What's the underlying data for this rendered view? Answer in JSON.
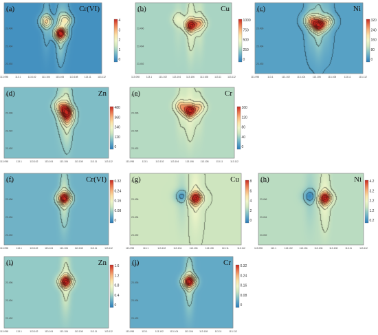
{
  "chart_data": [
    {
      "type": "heatmap",
      "panel": "(a)",
      "element": "Cr(VI)",
      "colorbar_ticks": [
        "4",
        "3",
        "2",
        "1",
        "0"
      ],
      "clim": [
        0,
        4.4
      ],
      "x_ticks": [
        "113.098",
        "113.1",
        "113.102",
        "113.104",
        "113.106",
        "113.108",
        "113.11",
        "113.112"
      ],
      "y_ticks": [
        "23.492",
        "23.494",
        "23.496",
        "23.498"
      ],
      "hotspots": [
        {
          "x": 113.106,
          "y": 23.496,
          "peak": 4.4
        },
        {
          "x": 113.104,
          "y": 23.4972,
          "peak": 2.4
        },
        {
          "x": 113.1068,
          "y": 23.4973,
          "peak": 2.0
        }
      ],
      "background_level": 0.3
    },
    {
      "type": "heatmap",
      "panel": "(b)",
      "element": "Cu",
      "colorbar_ticks": [
        "1000",
        "750",
        "500",
        "250",
        "0"
      ],
      "clim": [
        0,
        1100
      ],
      "x_ticks": [
        "113.098",
        "113.1",
        "113.102",
        "113.104",
        "113.106",
        "113.108",
        "113.11",
        "113.112"
      ],
      "y_ticks": [
        "23.492",
        "23.494",
        "23.496",
        "23.498"
      ],
      "hotspots": [
        {
          "x": 113.106,
          "y": 23.4968,
          "peak": 1050
        },
        {
          "x": 113.1073,
          "y": 23.497,
          "peak": 700
        },
        {
          "x": 113.1042,
          "y": 23.4974,
          "peak": 500
        }
      ],
      "background_level": 330
    },
    {
      "type": "heatmap",
      "panel": "(c)",
      "element": "Ni",
      "colorbar_ticks": [
        "320",
        "240",
        "160",
        "80",
        "0"
      ],
      "clim": [
        0,
        340
      ],
      "x_ticks": [
        "113.098",
        "113.1",
        "113.102",
        "113.104",
        "113.106",
        "113.108",
        "113.11",
        "113.112"
      ],
      "y_ticks": [
        "23.492",
        "23.494",
        "23.496",
        "23.498"
      ],
      "hotspots": [
        {
          "x": 113.1062,
          "y": 23.4968,
          "peak": 330
        },
        {
          "x": 113.1052,
          "y": 23.4973,
          "peak": 200
        },
        {
          "x": 113.1073,
          "y": 23.4972,
          "peak": 160
        }
      ],
      "background_level": 40
    },
    {
      "type": "heatmap",
      "panel": "(d)",
      "element": "Zn",
      "colorbar_ticks": [
        "480",
        "360",
        "240",
        "120",
        "0"
      ],
      "clim": [
        0,
        520
      ],
      "x_ticks": [
        "113.098",
        "113.1",
        "113.102",
        "113.104",
        "113.106",
        "113.108",
        "113.11",
        "113.112"
      ],
      "y_ticks": [
        "23.492",
        "23.494",
        "23.496",
        "23.498"
      ],
      "hotspots": [
        {
          "x": 113.1063,
          "y": 23.4966,
          "peak": 510
        },
        {
          "x": 113.1055,
          "y": 23.4972,
          "peak": 300
        },
        {
          "x": 113.1065,
          "y": 23.4958,
          "peak": 260
        }
      ],
      "background_level": 110
    },
    {
      "type": "heatmap",
      "panel": "(e)",
      "element": "Cr",
      "colorbar_ticks": [
        "160",
        "120",
        "80",
        "40",
        "0"
      ],
      "clim": [
        0,
        170
      ],
      "x_ticks": [
        "113.098",
        "113.1",
        "113.102",
        "113.104",
        "113.106",
        "113.108",
        "113.11",
        "113.112"
      ],
      "y_ticks": [
        "23.492",
        "23.494",
        "23.496",
        "23.498"
      ],
      "hotspots": [
        {
          "x": 113.106,
          "y": 23.4967,
          "peak": 165
        },
        {
          "x": 113.1048,
          "y": 23.4972,
          "peak": 110
        },
        {
          "x": 113.1072,
          "y": 23.4971,
          "peak": 100
        }
      ],
      "background_level": 55
    },
    {
      "type": "heatmap",
      "panel": "(f)",
      "element": "Cr(VI)",
      "colorbar_ticks": [
        "0.32",
        "0.24",
        "0.16",
        "0.08",
        "0"
      ],
      "clim": [
        0,
        0.34
      ],
      "x_ticks": [
        "113.098",
        "113.1",
        "113.102",
        "113.104",
        "113.106",
        "113.108",
        "113.11",
        "113.112"
      ],
      "y_ticks": [
        "23.492",
        "23.494",
        "23.496",
        "23.498"
      ],
      "hotspots": [
        {
          "x": 113.106,
          "y": 23.4966,
          "peak": 0.34
        }
      ],
      "background_level": 0.06
    },
    {
      "type": "heatmap",
      "panel": "(g)",
      "element": "Cu",
      "colorbar_ticks": [
        "8",
        "6",
        "4",
        "2",
        "0"
      ],
      "clim": [
        0,
        8.6
      ],
      "x_ticks": [
        "113.098",
        "113.1",
        "113.102",
        "113.104",
        "113.106",
        "113.108",
        "113.11",
        "113.112"
      ],
      "y_ticks": [
        "23.492",
        "23.494",
        "23.496",
        "23.498"
      ],
      "hotspots": [
        {
          "x": 113.1062,
          "y": 23.4966,
          "peak": 8.6
        },
        {
          "x": 113.1045,
          "y": 23.4968,
          "peak": 1.2
        }
      ],
      "background_level": 3.2
    },
    {
      "type": "heatmap",
      "panel": "(h)",
      "element": "Ni",
      "colorbar_ticks": [
        "4.2",
        "3.2",
        "2.2",
        "1.2",
        "0.2"
      ],
      "clim": [
        0.2,
        4.4
      ],
      "x_ticks": [
        "113.098",
        "113.1",
        "113.102",
        "113.104",
        "113.106",
        "113.108",
        "113.11",
        "113.112"
      ],
      "y_ticks": [
        "23.492",
        "23.494",
        "23.496",
        "23.498"
      ],
      "hotspots": [
        {
          "x": 113.1068,
          "y": 23.4966,
          "peak": 4.4
        },
        {
          "x": 113.1048,
          "y": 23.4968,
          "peak": 0.6
        }
      ],
      "background_level": 1.6
    },
    {
      "type": "heatmap",
      "panel": "(i)",
      "element": "Zn",
      "colorbar_ticks": [
        "1.6",
        "1.2",
        "0.8",
        "0.4",
        "0"
      ],
      "clim": [
        0,
        1.75
      ],
      "x_ticks": [
        "113.098",
        "113.1",
        "113.102",
        "113.104",
        "113.106",
        "113.108",
        "113.11",
        "113.112"
      ],
      "y_ticks": [
        "23.492",
        "23.494",
        "23.496",
        "23.498"
      ],
      "hotspots": [
        {
          "x": 113.1062,
          "y": 23.4966,
          "peak": 1.75
        }
      ],
      "background_level": 0.45
    },
    {
      "type": "heatmap",
      "panel": "(j)",
      "element": "Cr",
      "colorbar_ticks": [
        "0.32",
        "0.24",
        "0.16",
        "0.08",
        "0"
      ],
      "clim": [
        0,
        0.34
      ],
      "x_ticks": [
        "113.098",
        "113.1",
        "113.102",
        "113.104",
        "113.106",
        "113.108",
        "113.11",
        "113.112"
      ],
      "y_ticks": [
        "23.492",
        "23.494",
        "23.496",
        "23.498"
      ],
      "hotspots": [
        {
          "x": 113.106,
          "y": 23.4966,
          "peak": 0.34
        }
      ],
      "background_level": 0.05
    }
  ],
  "colormap": [
    "#2a7bb8",
    "#5aa3c6",
    "#8fc8c6",
    "#cfe6bf",
    "#eef5c9",
    "#fbe3a7",
    "#f7b47c",
    "#e9724c",
    "#c5281f"
  ]
}
